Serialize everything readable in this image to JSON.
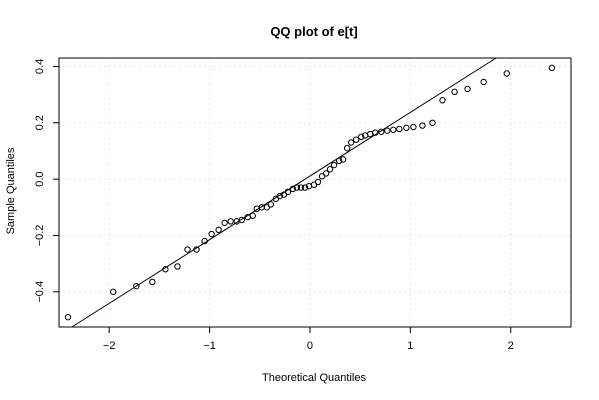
{
  "chart_data": {
    "type": "scatter",
    "title": "QQ plot of e[t]",
    "xlabel": "Theoretical Quantiles",
    "ylabel": "Sample Quantiles",
    "xlim": [
      -2.5,
      2.6
    ],
    "ylim": [
      -0.525,
      0.43
    ],
    "xticks": [
      -2,
      -1,
      0,
      1,
      2
    ],
    "xtick_labels": [
      "−2",
      "−1",
      "0",
      "1",
      "2"
    ],
    "yticks": [
      -0.4,
      -0.2,
      0.0,
      0.2,
      0.4
    ],
    "ytick_labels": [
      "−0.4",
      "−0.2",
      "0.0",
      "0.2",
      "0.4"
    ],
    "grid": true,
    "reference_line": {
      "intercept": 0.011,
      "slope": 0.226
    },
    "points": [
      {
        "x": -2.41,
        "y": -0.49
      },
      {
        "x": -1.96,
        "y": -0.4
      },
      {
        "x": -1.73,
        "y": -0.38
      },
      {
        "x": -1.57,
        "y": -0.365
      },
      {
        "x": -1.44,
        "y": -0.32
      },
      {
        "x": -1.32,
        "y": -0.31
      },
      {
        "x": -1.22,
        "y": -0.25
      },
      {
        "x": -1.13,
        "y": -0.25
      },
      {
        "x": -1.05,
        "y": -0.22
      },
      {
        "x": -0.98,
        "y": -0.195
      },
      {
        "x": -0.91,
        "y": -0.18
      },
      {
        "x": -0.85,
        "y": -0.155
      },
      {
        "x": -0.79,
        "y": -0.15
      },
      {
        "x": -0.73,
        "y": -0.15
      },
      {
        "x": -0.68,
        "y": -0.145
      },
      {
        "x": -0.62,
        "y": -0.135
      },
      {
        "x": -0.57,
        "y": -0.13
      },
      {
        "x": -0.53,
        "y": -0.105
      },
      {
        "x": -0.48,
        "y": -0.1
      },
      {
        "x": -0.43,
        "y": -0.1
      },
      {
        "x": -0.39,
        "y": -0.09
      },
      {
        "x": -0.34,
        "y": -0.07
      },
      {
        "x": -0.3,
        "y": -0.06
      },
      {
        "x": -0.26,
        "y": -0.055
      },
      {
        "x": -0.22,
        "y": -0.045
      },
      {
        "x": -0.17,
        "y": -0.035
      },
      {
        "x": -0.13,
        "y": -0.03
      },
      {
        "x": -0.09,
        "y": -0.03
      },
      {
        "x": -0.05,
        "y": -0.03
      },
      {
        "x": -0.01,
        "y": -0.025
      },
      {
        "x": 0.04,
        "y": -0.02
      },
      {
        "x": 0.08,
        "y": -0.01
      },
      {
        "x": 0.12,
        "y": 0.01
      },
      {
        "x": 0.16,
        "y": 0.02
      },
      {
        "x": 0.2,
        "y": 0.035
      },
      {
        "x": 0.24,
        "y": 0.05
      },
      {
        "x": 0.29,
        "y": 0.065
      },
      {
        "x": 0.33,
        "y": 0.07
      },
      {
        "x": 0.37,
        "y": 0.11
      },
      {
        "x": 0.41,
        "y": 0.13
      },
      {
        "x": 0.46,
        "y": 0.14
      },
      {
        "x": 0.51,
        "y": 0.15
      },
      {
        "x": 0.55,
        "y": 0.155
      },
      {
        "x": 0.6,
        "y": 0.16
      },
      {
        "x": 0.65,
        "y": 0.165
      },
      {
        "x": 0.71,
        "y": 0.168
      },
      {
        "x": 0.77,
        "y": 0.172
      },
      {
        "x": 0.83,
        "y": 0.175
      },
      {
        "x": 0.89,
        "y": 0.178
      },
      {
        "x": 0.96,
        "y": 0.182
      },
      {
        "x": 1.03,
        "y": 0.185
      },
      {
        "x": 1.12,
        "y": 0.19
      },
      {
        "x": 1.22,
        "y": 0.2
      },
      {
        "x": 1.32,
        "y": 0.28
      },
      {
        "x": 1.44,
        "y": 0.31
      },
      {
        "x": 1.57,
        "y": 0.32
      },
      {
        "x": 1.73,
        "y": 0.345
      },
      {
        "x": 1.96,
        "y": 0.375
      },
      {
        "x": 2.41,
        "y": 0.395
      }
    ]
  }
}
